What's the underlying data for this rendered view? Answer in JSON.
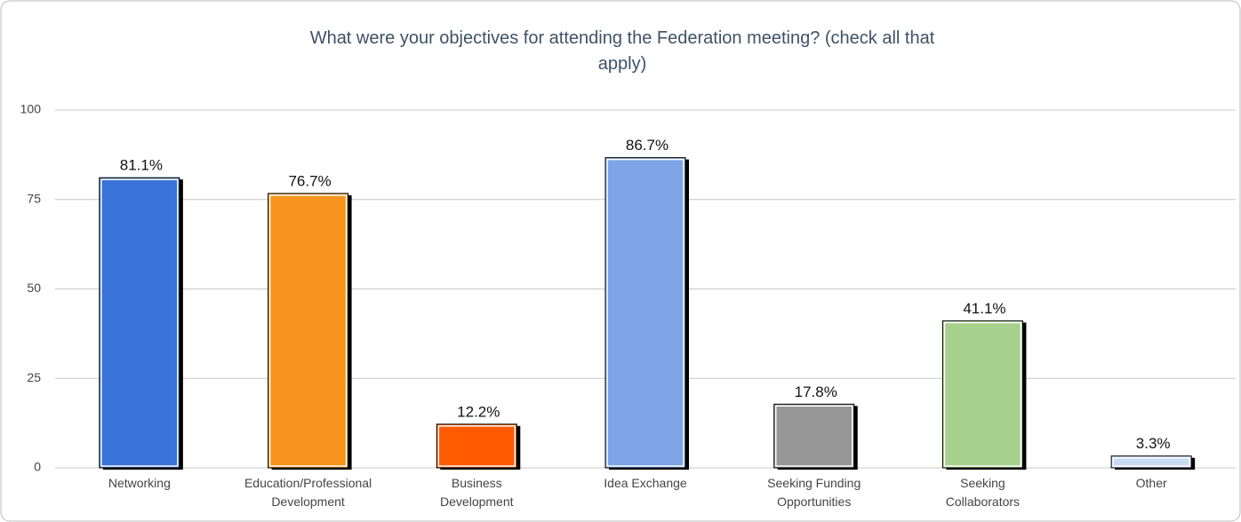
{
  "chart_data": {
    "type": "bar",
    "title": "What were your objectives for attending the Federation meeting? (check all that apply)",
    "categories": [
      "Networking",
      "Education/Professional Development",
      "Business Development",
      "Idea Exchange",
      "Seeking Funding Opportunities",
      "Seeking Collaborators",
      "Other"
    ],
    "values": [
      81.1,
      76.7,
      12.2,
      86.7,
      17.8,
      41.1,
      3.3
    ],
    "value_labels": [
      "81.1%",
      "76.7%",
      "12.2%",
      "86.7%",
      "17.8%",
      "41.1%",
      "3.3%"
    ],
    "colors": [
      "#3a73d9",
      "#f7941d",
      "#ff5a00",
      "#7da4e6",
      "#969696",
      "#a7d08d",
      "#c8dbf5"
    ],
    "ylim": [
      0,
      100
    ],
    "yticks": [
      0,
      25,
      50,
      75,
      100
    ],
    "grid": true
  }
}
